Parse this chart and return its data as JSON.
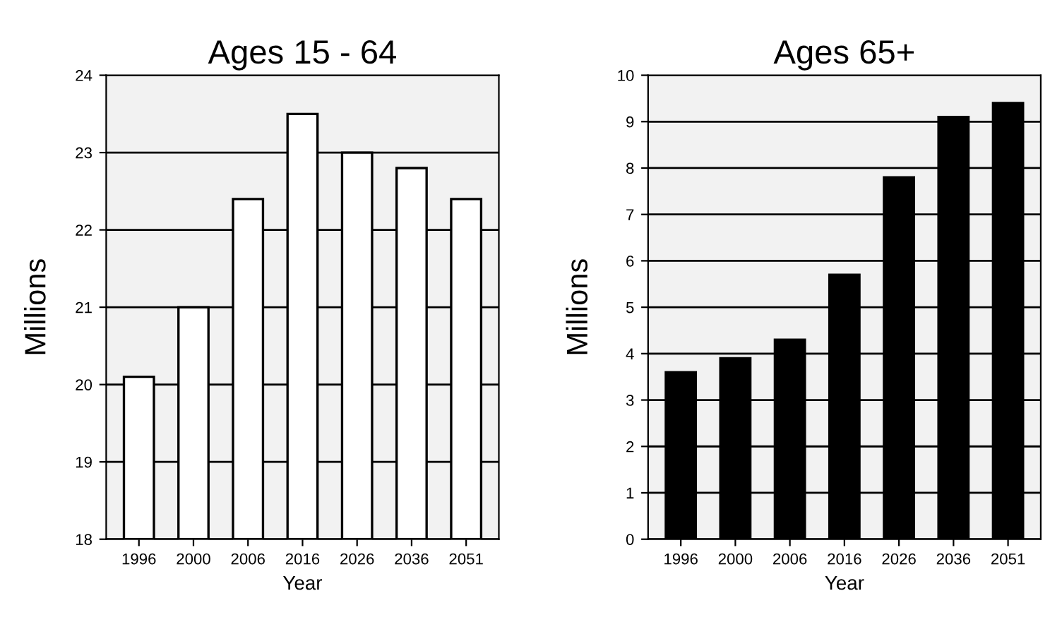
{
  "chart_data": [
    {
      "type": "bar",
      "title": "Ages 15 - 64",
      "xlabel": "Year",
      "ylabel": "Millions",
      "categories": [
        "1996",
        "2000",
        "2006",
        "2016",
        "2026",
        "2036",
        "2051"
      ],
      "series": [
        {
          "color": "#ffffff",
          "values": [
            20.1,
            21.0,
            22.4,
            23.5,
            23.0,
            22.8,
            22.4
          ]
        }
      ],
      "ylim": [
        18,
        24
      ],
      "yticks": [
        18,
        19,
        20,
        21,
        22,
        23,
        24
      ],
      "grid": "y"
    },
    {
      "type": "bar",
      "title": "Ages 65+",
      "xlabel": "Year",
      "ylabel": "Millions",
      "categories": [
        "1996",
        "2000",
        "2006",
        "2016",
        "2026",
        "2036",
        "2051"
      ],
      "series": [
        {
          "color": "#000000",
          "values": [
            3.6,
            3.9,
            4.3,
            5.7,
            7.8,
            9.1,
            9.4
          ]
        }
      ],
      "ylim": [
        0,
        10
      ],
      "yticks": [
        0,
        1,
        2,
        3,
        4,
        5,
        6,
        7,
        8,
        9,
        10
      ],
      "grid": "y"
    }
  ]
}
